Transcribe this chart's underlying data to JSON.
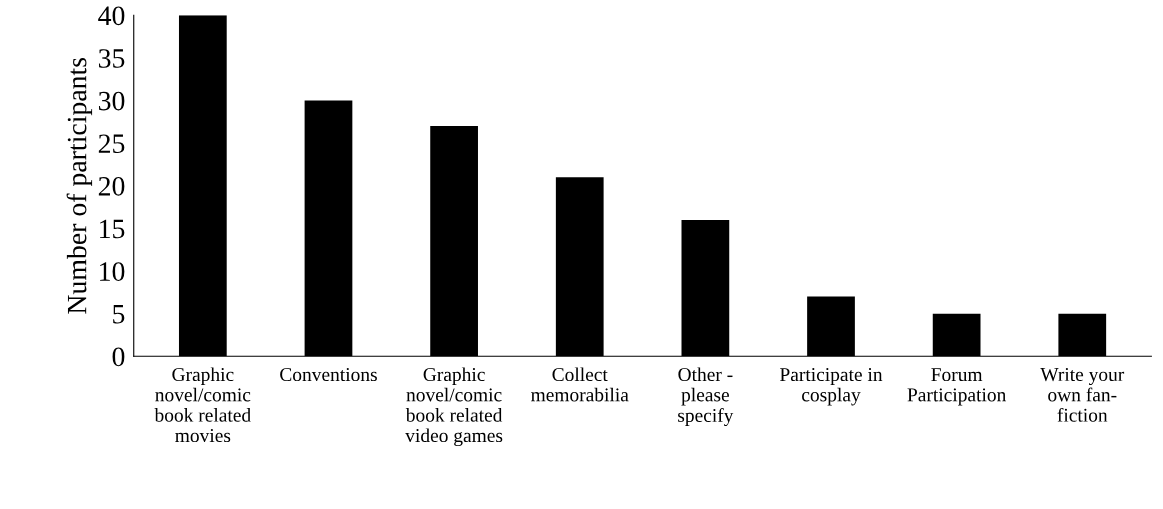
{
  "chart_data": {
    "type": "bar",
    "ylabel": "Number of participants",
    "categories": [
      "Graphic\nnovel/comic\nbook related\nmovies",
      "Conventions",
      "Graphic\nnovel/comic\nbook related\nvideo games",
      "Collect\nmemorabilia",
      "Other -\nplease\nspecify",
      "Participate in\ncosplay",
      "Forum\nParticipation",
      "Write your\nown fan-\nfiction"
    ],
    "values": [
      40,
      30,
      27,
      21,
      16,
      7,
      5,
      5
    ],
    "color": "#000000",
    "ylim": [
      0,
      40
    ],
    "yticks": [
      0,
      5,
      10,
      15,
      20,
      25,
      30,
      35,
      40
    ],
    "grid": false,
    "legend": false
  }
}
